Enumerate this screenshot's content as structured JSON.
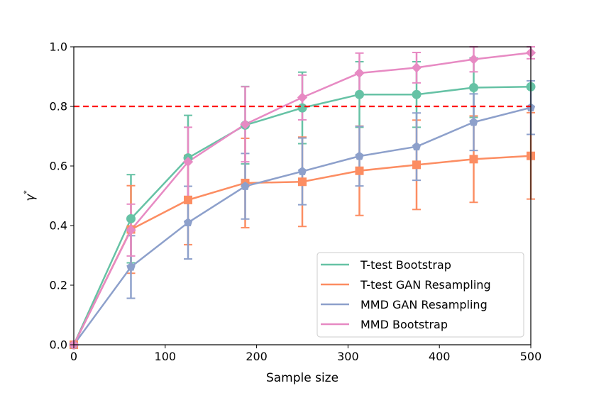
{
  "chart_data": {
    "type": "line",
    "title": "",
    "xlabel": "Sample size",
    "ylabel_base": "γ",
    "ylabel_sup": "*",
    "xlim": [
      0,
      500
    ],
    "ylim": [
      0.0,
      1.0
    ],
    "xticks": [
      0,
      100,
      200,
      300,
      400,
      500
    ],
    "xtick_labels": [
      "0",
      "100",
      "200",
      "300",
      "400",
      "500"
    ],
    "yticks": [
      0.0,
      0.2,
      0.4,
      0.6,
      0.8,
      1.0
    ],
    "ytick_labels": [
      "0.0",
      "0.2",
      "0.4",
      "0.6",
      "0.8",
      "1.0"
    ],
    "reference_line": {
      "y": 0.8,
      "color": "#ff0000",
      "style": "dashed"
    },
    "legend_position": "lower-right",
    "series": [
      {
        "name": "T-test Bootstrap",
        "color": "#66c2a5",
        "marker": "circle",
        "x": [
          0,
          62.5,
          125,
          187.5,
          250,
          312.5,
          375,
          437.5,
          500
        ],
        "y": [
          0.0,
          0.423,
          0.627,
          0.737,
          0.795,
          0.84,
          0.84,
          0.863,
          0.866
        ],
        "err": [
          0,
          0.148,
          0.143,
          0.13,
          0.12,
          0.11,
          0.11,
          0.1,
          0.0
        ]
      },
      {
        "name": "T-test GAN Resampling",
        "color": "#fc8d62",
        "marker": "square",
        "x": [
          0,
          62.5,
          125,
          187.5,
          250,
          312.5,
          375,
          437.5,
          500
        ],
        "y": [
          0.0,
          0.387,
          0.486,
          0.543,
          0.547,
          0.584,
          0.604,
          0.623,
          0.634
        ],
        "err": [
          0,
          0.147,
          0.15,
          0.15,
          0.15,
          0.15,
          0.15,
          0.145,
          0.145
        ]
      },
      {
        "name": "MMD GAN Resampling",
        "color": "#8da0cb",
        "marker": "pentagon",
        "x": [
          0,
          62.5,
          125,
          187.5,
          250,
          312.5,
          375,
          437.5,
          500
        ],
        "y": [
          0.0,
          0.261,
          0.41,
          0.532,
          0.582,
          0.633,
          0.665,
          0.747,
          0.796
        ],
        "err": [
          0,
          0.105,
          0.122,
          0.11,
          0.112,
          0.1,
          0.113,
          0.095,
          0.09
        ]
      },
      {
        "name": "MMD Bootstrap",
        "color": "#e78ac3",
        "marker": "diamond",
        "x": [
          0,
          62.5,
          125,
          187.5,
          250,
          312.5,
          375,
          437.5,
          500
        ],
        "y": [
          0.0,
          0.385,
          0.614,
          0.74,
          0.83,
          0.912,
          0.93,
          0.958,
          0.98
        ],
        "err": [
          0,
          0.087,
          0.116,
          0.126,
          0.075,
          0.067,
          0.051,
          0.042,
          0.02
        ]
      }
    ]
  }
}
